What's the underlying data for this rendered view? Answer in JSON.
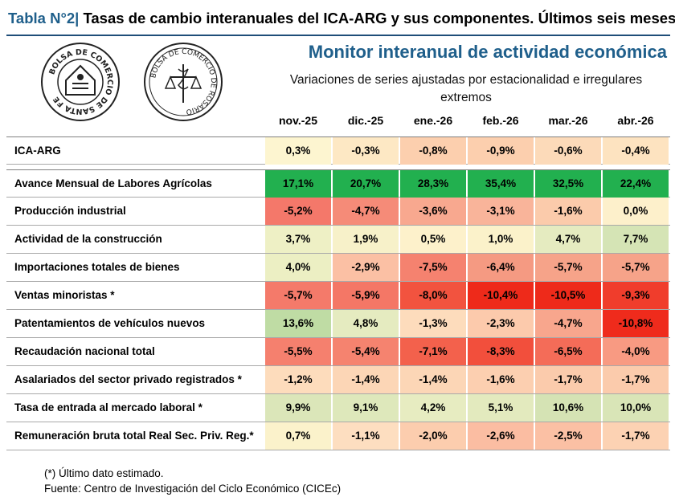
{
  "title": {
    "number": "Tabla N°2",
    "separator": "|",
    "text": "Tasas de cambio interanuales del ICA-ARG y sus componentes. Últimos seis meses."
  },
  "logos": {
    "left": {
      "text": "BOLSA DE COMERCIO DE SANTA FE",
      "icon": "santa-fe-seal-icon"
    },
    "right": {
      "text": "BOLSA DE COMERCIO DE ROSARIO",
      "icon": "rosario-seal-icon"
    }
  },
  "monitor": {
    "title": "Monitor interanual de actividad económica",
    "subtitle": "Variaciones de series ajustadas por estacionalidad e irregulares extremos"
  },
  "columns": [
    "nov.-25",
    "dic.-25",
    "ene.-26",
    "feb.-26",
    "mar.-26",
    "abr.-26"
  ],
  "rows": [
    {
      "label": "ICA-ARG",
      "values": [
        "0,3%",
        "-0,3%",
        "-0,8%",
        "-0,9%",
        "-0,6%",
        "-0,4%"
      ],
      "colors": [
        "#fdf5d0",
        "#fde8c4",
        "#fccfae",
        "#fccfae",
        "#fcdab9",
        "#fde3c0"
      ]
    },
    {
      "label": "Avance Mensual de Labores Agrícolas",
      "values": [
        "17,1%",
        "20,7%",
        "28,3%",
        "35,4%",
        "32,5%",
        "22,4%"
      ],
      "colors": [
        "#22b04f",
        "#22b04f",
        "#22b04f",
        "#22b04f",
        "#22b04f",
        "#22b04f"
      ]
    },
    {
      "label": "Producción industrial",
      "values": [
        "-5,2%",
        "-4,7%",
        "-3,6%",
        "-3,1%",
        "-1,6%",
        "0,0%"
      ],
      "colors": [
        "#f4786a",
        "#f58b78",
        "#f8a88f",
        "#f9b49a",
        "#fbcbab",
        "#fdf0cb"
      ]
    },
    {
      "label": "Actividad de la construcción",
      "values": [
        "3,7%",
        "1,9%",
        "0,5%",
        "1,0%",
        "4,7%",
        "7,7%"
      ],
      "colors": [
        "#eef0c5",
        "#f7f1c9",
        "#fdf1cb",
        "#fbf2ca",
        "#e5ebc0",
        "#d5e4b5"
      ]
    },
    {
      "label": "Importaciones totales de bienes",
      "values": [
        "4,0%",
        "-2,9%",
        "-7,5%",
        "-6,4%",
        "-5,7%",
        "-5,7%"
      ],
      "colors": [
        "#ecefc3",
        "#fbc0a4",
        "#f5826f",
        "#f59a82",
        "#f6a389",
        "#f6a389"
      ]
    },
    {
      "label": "Ventas minoristas *",
      "values": [
        "-5,7%",
        "-5,9%",
        "-8,0%",
        "-10,4%",
        "-10,5%",
        "-9,3%"
      ],
      "colors": [
        "#f47a6a",
        "#f47766",
        "#f2533f",
        "#ee2a1a",
        "#ee2a1a",
        "#f03d2c"
      ]
    },
    {
      "label": "Patentamientos de vehículos nuevos",
      "values": [
        "13,6%",
        "4,8%",
        "-1,3%",
        "-2,3%",
        "-4,7%",
        "-10,8%"
      ],
      "colors": [
        "#bfdca4",
        "#e5ebc0",
        "#fddcbc",
        "#fccaac",
        "#f8a68d",
        "#ef2b1c"
      ]
    },
    {
      "label": "Recaudación nacional total",
      "values": [
        "-5,5%",
        "-5,4%",
        "-7,1%",
        "-8,3%",
        "-6,5%",
        "-4,0%"
      ],
      "colors": [
        "#f5806e",
        "#f5836f",
        "#f3614c",
        "#f24f3c",
        "#f46c58",
        "#f89a82"
      ]
    },
    {
      "label": "Asalariados del sector privado registrados *",
      "values": [
        "-1,2%",
        "-1,4%",
        "-1,4%",
        "-1,6%",
        "-1,7%",
        "-1,7%"
      ],
      "colors": [
        "#fddcbc",
        "#fcd6b6",
        "#fcd6b6",
        "#fccfb0",
        "#fbcbac",
        "#fbcbac"
      ]
    },
    {
      "label": "Tasa de entrada al mercado laboral *",
      "values": [
        "9,9%",
        "9,1%",
        "4,2%",
        "5,1%",
        "10,6%",
        "10,0%"
      ],
      "colors": [
        "#dbe6b9",
        "#dee8bb",
        "#e7ecc1",
        "#e3eabe",
        "#d5e3b4",
        "#d9e5b7"
      ]
    },
    {
      "label": "Remuneración bruta total Real Sec. Priv. Reg.*",
      "values": [
        "0,7%",
        "-1,1%",
        "-2,0%",
        "-2,6%",
        "-2,5%",
        "-1,7%"
      ],
      "colors": [
        "#fbf2cb",
        "#fddec0",
        "#fccdae",
        "#fbbda2",
        "#fbc0a4",
        "#fcd2b3"
      ]
    }
  ],
  "footnotes": {
    "note": "(*) Último dato estimado.",
    "source": "Fuente: Centro de Investigación del Ciclo Económico (CICEc)"
  }
}
